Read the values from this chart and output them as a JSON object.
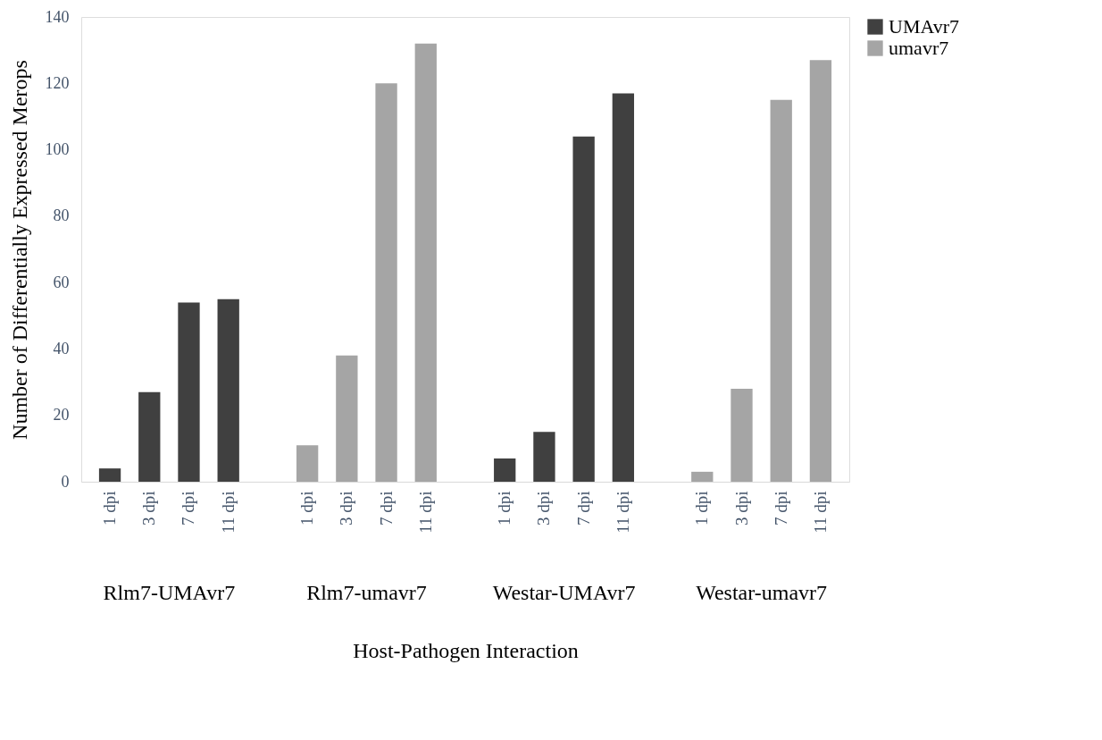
{
  "chart_data": {
    "type": "bar",
    "xlabel": "Host-Pathogen Interaction",
    "ylabel": "Number of Differentially Expressed Merops",
    "categories": [
      "1 dpi",
      "3 dpi",
      "7 dpi",
      "11 dpi",
      null,
      "1 dpi",
      "3 dpi",
      "7 dpi",
      "11 dpi",
      null,
      "1 dpi",
      "3 dpi",
      "7 dpi",
      "11 dpi",
      null,
      "1 dpi",
      "3 dpi",
      "7 dpi",
      "11 dpi"
    ],
    "series": [
      {
        "name": "UMAvr7",
        "color": "#404040",
        "values": [
          4,
          27,
          54,
          55,
          null,
          null,
          null,
          null,
          null,
          null,
          7,
          15,
          104,
          117,
          null,
          null,
          null,
          null,
          null
        ]
      },
      {
        "name": "umavr7",
        "color": "#a5a5a5",
        "values": [
          null,
          null,
          null,
          null,
          null,
          11,
          38,
          120,
          132,
          null,
          null,
          null,
          null,
          null,
          null,
          3,
          28,
          115,
          127
        ]
      }
    ],
    "annotations": [
      "Rlm7-UMAvr7",
      "Rlm7-umavr7",
      "Westar-UMAvr7",
      "Westar-umavr7"
    ],
    "ylim": [
      0,
      140
    ],
    "yticks": [
      0,
      20,
      40,
      60,
      80,
      100,
      120,
      140
    ],
    "grid": false,
    "legend": "right"
  }
}
